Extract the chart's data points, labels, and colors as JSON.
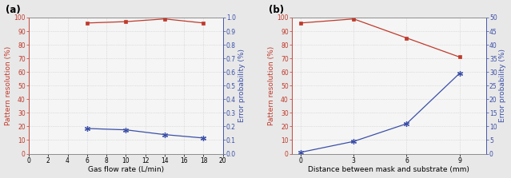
{
  "a": {
    "label": "(a)",
    "xlabel": "Gas flow rate (L/min)",
    "ylabel_left": "Pattern resolution (%)",
    "ylabel_right": "Error probability (%)",
    "xlim": [
      0,
      20
    ],
    "ylim_left": [
      0,
      100
    ],
    "ylim_right": [
      0.0,
      1.0
    ],
    "xticks": [
      0,
      2,
      4,
      6,
      8,
      10,
      12,
      14,
      16,
      18,
      20
    ],
    "yticks_left": [
      0,
      10,
      20,
      30,
      40,
      50,
      60,
      70,
      80,
      90,
      100
    ],
    "yticks_right": [
      0.0,
      0.1,
      0.2,
      0.3,
      0.4,
      0.5,
      0.6,
      0.7,
      0.8,
      0.9,
      1.0
    ],
    "red_x": [
      6,
      10,
      14,
      18
    ],
    "red_y": [
      96,
      97,
      99,
      96
    ],
    "blue_x": [
      6,
      10,
      14,
      18
    ],
    "blue_y": [
      0.185,
      0.175,
      0.14,
      0.115
    ],
    "red_color": "#c0392b",
    "blue_color": "#3b4fa8"
  },
  "b": {
    "label": "(b)",
    "xlabel": "Distance between mask and substrate (mm)",
    "ylabel_left": "Pattern resolution (%)",
    "ylabel_right": "Error probability (%)",
    "xlim": [
      -0.5,
      10.5
    ],
    "ylim_left": [
      0,
      100
    ],
    "ylim_right": [
      0,
      50
    ],
    "xticks": [
      0,
      3,
      6,
      9
    ],
    "yticks_left": [
      0,
      10,
      20,
      30,
      40,
      50,
      60,
      70,
      80,
      90,
      100
    ],
    "yticks_right": [
      0,
      5,
      10,
      15,
      20,
      25,
      30,
      35,
      40,
      45,
      50
    ],
    "red_x": [
      0,
      3,
      6,
      9
    ],
    "red_y": [
      96,
      99,
      85,
      71
    ],
    "blue_x": [
      0,
      3,
      6,
      9
    ],
    "blue_y": [
      0.5,
      4.5,
      11.0,
      29.5
    ],
    "red_color": "#c0392b",
    "blue_color": "#3b4fa8"
  },
  "fig_bg_color": "#e8e8e8",
  "plot_bg_color": "#f5f5f5",
  "grid_color": "#c8c8c8",
  "label_fontsize": 6.5,
  "tick_fontsize": 5.5,
  "panel_label_fontsize": 8.5
}
